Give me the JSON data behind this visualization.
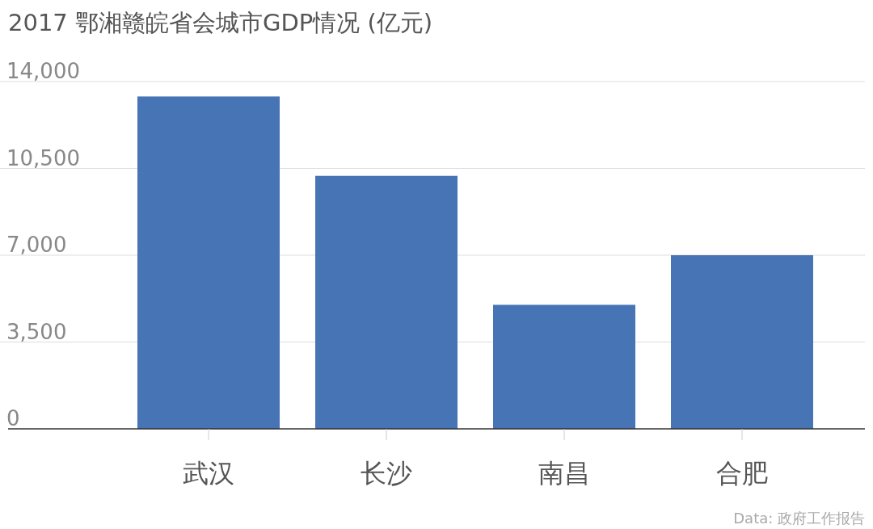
{
  "chart_data": {
    "type": "bar",
    "title": "2017 鄂湘赣皖省会城市GDP情况 (亿元)",
    "categories": [
      "武汉",
      "长沙",
      "南昌",
      "合肥"
    ],
    "values": [
      13400,
      10200,
      5000,
      7000
    ],
    "color": "#4674b4",
    "ylim": [
      0,
      14000
    ],
    "yticks": [
      0,
      {
        "value": 3500,
        "label": "3,500"
      },
      {
        "value": 7000,
        "label": "7,000"
      },
      {
        "value": 10500,
        "label": "10,500"
      },
      {
        "value": 14000,
        "label": "14,000"
      }
    ],
    "grid": "y",
    "annotations": [
      "Data: 政府工作报告"
    ]
  }
}
